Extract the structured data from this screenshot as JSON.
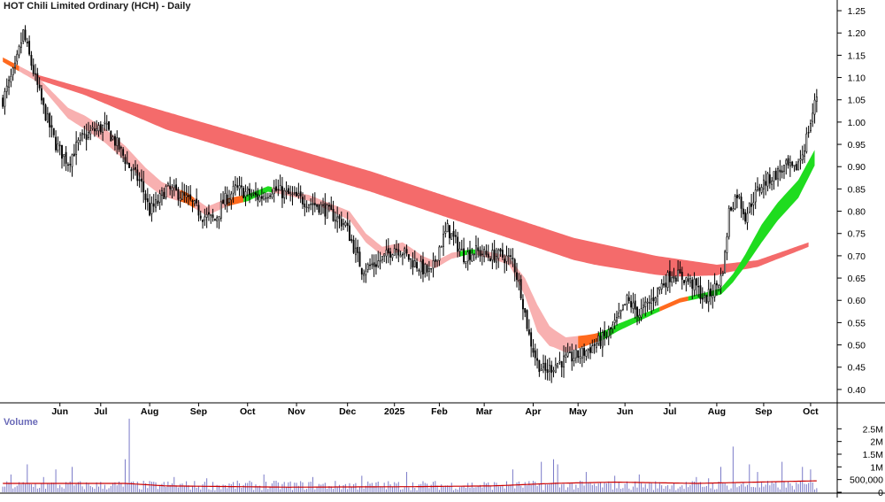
{
  "title": "HOT Chili Limited Ordinary (HCH) - Daily",
  "volume_label": "Volume",
  "colors": {
    "candle": "#000000",
    "long_band": "#f46b6b",
    "short_band_down": "#f8b0b0",
    "short_band_orange": "#ff6a1e",
    "short_band_up": "#1fdc1f",
    "volume_bar": "#7a7ac8",
    "volume_ma": "#cc0000"
  },
  "chart_data": {
    "type": "candlestick",
    "x_tick_labels": [
      "Jun",
      "Jul",
      "Aug",
      "Sep",
      "Oct",
      "Nov",
      "Dec",
      "2025",
      "Feb",
      "Mar",
      "Apr",
      "May",
      "Jun",
      "Jul",
      "Aug",
      "Sep",
      "Oct"
    ],
    "x_tick_index": [
      28,
      48,
      72,
      96,
      120,
      144,
      169,
      192,
      214,
      236,
      260,
      282,
      305,
      327,
      350,
      373,
      396
    ],
    "y_ticks": [
      0.4,
      0.45,
      0.5,
      0.55,
      0.6,
      0.65,
      0.7,
      0.75,
      0.8,
      0.85,
      0.9,
      0.95,
      1.0,
      1.05,
      1.1,
      1.15,
      1.2,
      1.25
    ],
    "y_tick_labels": [
      "0.40",
      "0.45",
      "0.50",
      "0.55",
      "0.60",
      "0.65",
      "0.70",
      "0.75",
      "0.80",
      "0.85",
      "0.90",
      "0.95",
      "1.00",
      "1.05",
      "1.10",
      "1.15",
      "1.20",
      "1.25"
    ],
    "ylim": [
      0.37,
      1.27
    ],
    "price_anchors": [
      [
        0,
        1.05
      ],
      [
        6,
        1.12
      ],
      [
        10,
        1.2
      ],
      [
        14,
        1.13
      ],
      [
        20,
        1.03
      ],
      [
        26,
        0.95
      ],
      [
        32,
        0.91
      ],
      [
        38,
        0.96
      ],
      [
        44,
        0.98
      ],
      [
        50,
        0.99
      ],
      [
        56,
        0.95
      ],
      [
        62,
        0.9
      ],
      [
        68,
        0.86
      ],
      [
        72,
        0.8
      ],
      [
        76,
        0.82
      ],
      [
        80,
        0.85
      ],
      [
        86,
        0.84
      ],
      [
        92,
        0.82
      ],
      [
        98,
        0.79
      ],
      [
        104,
        0.78
      ],
      [
        108,
        0.82
      ],
      [
        114,
        0.85
      ],
      [
        120,
        0.84
      ],
      [
        126,
        0.83
      ],
      [
        132,
        0.85
      ],
      [
        138,
        0.84
      ],
      [
        144,
        0.83
      ],
      [
        150,
        0.82
      ],
      [
        156,
        0.81
      ],
      [
        162,
        0.79
      ],
      [
        168,
        0.77
      ],
      [
        172,
        0.72
      ],
      [
        176,
        0.67
      ],
      [
        182,
        0.68
      ],
      [
        188,
        0.7
      ],
      [
        192,
        0.72
      ],
      [
        196,
        0.71
      ],
      [
        200,
        0.69
      ],
      [
        206,
        0.67
      ],
      [
        210,
        0.66
      ],
      [
        214,
        0.72
      ],
      [
        218,
        0.76
      ],
      [
        222,
        0.73
      ],
      [
        226,
        0.7
      ],
      [
        232,
        0.71
      ],
      [
        238,
        0.7
      ],
      [
        244,
        0.7
      ],
      [
        250,
        0.69
      ],
      [
        254,
        0.62
      ],
      [
        258,
        0.52
      ],
      [
        262,
        0.46
      ],
      [
        266,
        0.44
      ],
      [
        272,
        0.46
      ],
      [
        278,
        0.47
      ],
      [
        284,
        0.48
      ],
      [
        290,
        0.5
      ],
      [
        296,
        0.52
      ],
      [
        302,
        0.56
      ],
      [
        306,
        0.6
      ],
      [
        312,
        0.57
      ],
      [
        318,
        0.6
      ],
      [
        322,
        0.63
      ],
      [
        328,
        0.66
      ],
      [
        334,
        0.65
      ],
      [
        340,
        0.63
      ],
      [
        344,
        0.6
      ],
      [
        348,
        0.62
      ],
      [
        352,
        0.65
      ],
      [
        354,
        0.7
      ],
      [
        356,
        0.8
      ],
      [
        360,
        0.84
      ],
      [
        364,
        0.79
      ],
      [
        368,
        0.83
      ],
      [
        372,
        0.86
      ],
      [
        378,
        0.88
      ],
      [
        384,
        0.9
      ],
      [
        388,
        0.89
      ],
      [
        392,
        0.93
      ],
      [
        396,
        1.0
      ],
      [
        399,
        1.06
      ]
    ],
    "long_band_upper": [
      [
        14,
        1.11
      ],
      [
        60,
        1.05
      ],
      [
        120,
        0.97
      ],
      [
        180,
        0.89
      ],
      [
        240,
        0.8
      ],
      [
        280,
        0.74
      ],
      [
        320,
        0.7
      ],
      [
        350,
        0.68
      ],
      [
        370,
        0.69
      ],
      [
        395,
        0.73
      ]
    ],
    "long_band_width": [
      [
        14,
        0.01
      ],
      [
        40,
        0.015
      ],
      [
        80,
        0.04
      ],
      [
        160,
        0.045
      ],
      [
        240,
        0.048
      ],
      [
        290,
        0.05
      ],
      [
        330,
        0.04
      ],
      [
        355,
        0.02
      ],
      [
        370,
        0.015
      ],
      [
        395,
        0.01
      ]
    ],
    "short_band_center": [
      [
        0,
        1.14
      ],
      [
        8,
        1.12
      ],
      [
        16,
        1.1
      ],
      [
        24,
        1.06
      ],
      [
        32,
        1.02
      ],
      [
        40,
        1.0
      ],
      [
        50,
        0.97
      ],
      [
        60,
        0.93
      ],
      [
        70,
        0.88
      ],
      [
        78,
        0.85
      ],
      [
        90,
        0.83
      ],
      [
        100,
        0.8
      ],
      [
        110,
        0.82
      ],
      [
        120,
        0.83
      ],
      [
        130,
        0.85
      ],
      [
        140,
        0.84
      ],
      [
        150,
        0.83
      ],
      [
        160,
        0.81
      ],
      [
        170,
        0.79
      ],
      [
        178,
        0.74
      ],
      [
        186,
        0.71
      ],
      [
        196,
        0.72
      ],
      [
        206,
        0.69
      ],
      [
        212,
        0.68
      ],
      [
        220,
        0.7
      ],
      [
        230,
        0.71
      ],
      [
        240,
        0.7
      ],
      [
        248,
        0.69
      ],
      [
        256,
        0.63
      ],
      [
        262,
        0.56
      ],
      [
        268,
        0.52
      ],
      [
        276,
        0.5
      ],
      [
        286,
        0.51
      ],
      [
        294,
        0.52
      ],
      [
        302,
        0.54
      ],
      [
        312,
        0.56
      ],
      [
        322,
        0.58
      ],
      [
        332,
        0.6
      ],
      [
        342,
        0.61
      ],
      [
        352,
        0.62
      ],
      [
        358,
        0.65
      ],
      [
        364,
        0.69
      ],
      [
        372,
        0.75
      ],
      [
        380,
        0.8
      ],
      [
        390,
        0.85
      ],
      [
        398,
        0.92
      ]
    ],
    "short_band_width": [
      [
        0,
        0.01
      ],
      [
        20,
        0.015
      ],
      [
        40,
        0.03
      ],
      [
        70,
        0.035
      ],
      [
        100,
        0.02
      ],
      [
        140,
        0.01
      ],
      [
        170,
        0.02
      ],
      [
        200,
        0.02
      ],
      [
        230,
        0.01
      ],
      [
        250,
        0.02
      ],
      [
        262,
        0.06
      ],
      [
        270,
        0.04
      ],
      [
        290,
        0.02
      ],
      [
        320,
        0.01
      ],
      [
        345,
        0.01
      ],
      [
        360,
        0.02
      ],
      [
        372,
        0.04
      ],
      [
        390,
        0.04
      ],
      [
        398,
        0.035
      ]
    ],
    "short_band_colors": [
      [
        0,
        "orange"
      ],
      [
        8,
        "down"
      ],
      [
        87,
        "orange"
      ],
      [
        94,
        "down"
      ],
      [
        110,
        "orange"
      ],
      [
        118,
        "up"
      ],
      [
        132,
        "down"
      ],
      [
        224,
        "up"
      ],
      [
        232,
        "down"
      ],
      [
        282,
        "orange"
      ],
      [
        292,
        "up"
      ],
      [
        322,
        "orange"
      ],
      [
        336,
        "up"
      ]
    ],
    "volume": {
      "y_ticks": [
        0,
        500000,
        1000000,
        1500000,
        2000000,
        2500000
      ],
      "y_tick_labels": [
        "0",
        "500,000",
        "1M",
        "1.5M",
        "2M",
        "2.5M"
      ],
      "ylim": [
        0,
        3000000
      ],
      "spikes": [
        [
          4,
          700000
        ],
        [
          12,
          1100000
        ],
        [
          20,
          600000
        ],
        [
          26,
          900000
        ],
        [
          34,
          1000000
        ],
        [
          60,
          1300000
        ],
        [
          62,
          2900000
        ],
        [
          84,
          600000
        ],
        [
          100,
          550000
        ],
        [
          128,
          700000
        ],
        [
          152,
          600000
        ],
        [
          176,
          650000
        ],
        [
          198,
          800000
        ],
        [
          250,
          900000
        ],
        [
          264,
          1200000
        ],
        [
          270,
          1300000
        ],
        [
          272,
          1100000
        ],
        [
          286,
          800000
        ],
        [
          300,
          650000
        ],
        [
          312,
          700000
        ],
        [
          340,
          600000
        ],
        [
          346,
          550000
        ],
        [
          352,
          1000000
        ],
        [
          358,
          1800000
        ],
        [
          366,
          1100000
        ],
        [
          370,
          800000
        ],
        [
          382,
          1200000
        ],
        [
          392,
          1000000
        ],
        [
          396,
          900000
        ]
      ],
      "ma": [
        [
          0,
          350000
        ],
        [
          60,
          350000
        ],
        [
          80,
          250000
        ],
        [
          140,
          200000
        ],
        [
          200,
          220000
        ],
        [
          240,
          250000
        ],
        [
          270,
          350000
        ],
        [
          300,
          400000
        ],
        [
          340,
          350000
        ],
        [
          370,
          400000
        ],
        [
          399,
          450000
        ]
      ]
    },
    "n_bars": 400
  }
}
